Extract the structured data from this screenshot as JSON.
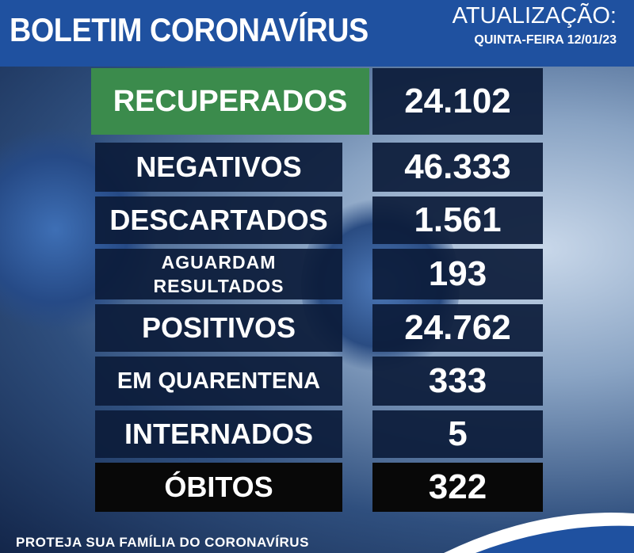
{
  "header": {
    "title": "BOLETIM CORONAVÍRUS",
    "update_label": "ATUALIZAÇÃO:",
    "date": "QUINTA-FEIRA 12/01/23"
  },
  "rows": [
    {
      "label": "RECUPERADOS",
      "value": "24.102"
    },
    {
      "label": "NEGATIVOS",
      "value": "46.333"
    },
    {
      "label": "DESCARTADOS",
      "value": "1.561"
    },
    {
      "label": "AGUARDAM RESULTADOS",
      "value": "193"
    },
    {
      "label": "POSITIVOS",
      "value": "24.762"
    },
    {
      "label": "EM QUARENTENA",
      "value": "333"
    },
    {
      "label": "INTERNADOS",
      "value": "5"
    },
    {
      "label": "ÓBITOS",
      "value": "322"
    }
  ],
  "footer": "PROTEJA SUA FAMÍLIA DO CORONAVÍRUS"
}
